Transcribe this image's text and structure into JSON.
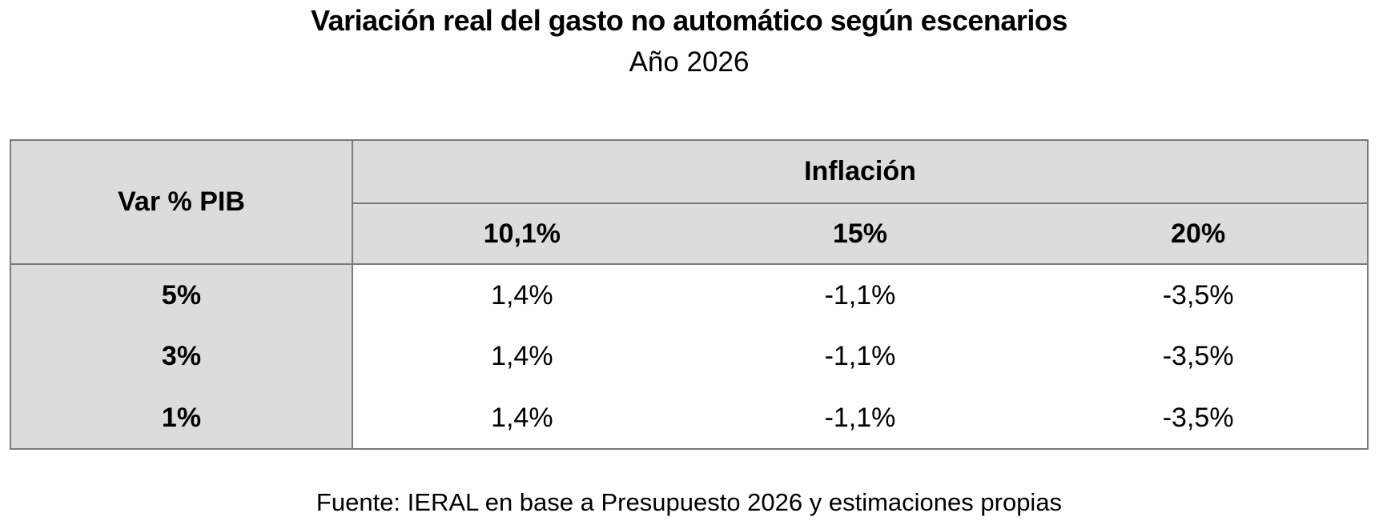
{
  "title": "Variación real del gasto no automático según escenarios",
  "subtitle": "Año 2026",
  "source": "Fuente: IERAL en base a Presupuesto 2026 y estimaciones propias",
  "table": {
    "corner_header": "Var % PIB",
    "group_header": "Inflación",
    "column_headers": [
      "10,1%",
      "15%",
      "20%"
    ],
    "rows": [
      {
        "label": "5%",
        "values": [
          "1,4%",
          "-1,1%",
          "-3,5%"
        ]
      },
      {
        "label": "3%",
        "values": [
          "1,4%",
          "-1,1%",
          "-3,5%"
        ]
      },
      {
        "label": "1%",
        "values": [
          "1,4%",
          "-1,1%",
          "-3,5%"
        ]
      }
    ]
  },
  "colors": {
    "header_bg": "#dcdcdc",
    "grid_line": "#7a7a7a",
    "body_bg": "#ffffff",
    "text": "#000000"
  },
  "chart_data": {
    "type": "table",
    "title": "Variación real del gasto no automático según escenarios",
    "subtitle": "Año 2026",
    "row_axis_label": "Var % PIB",
    "column_group_label": "Inflación",
    "columns": [
      "10,1%",
      "15%",
      "20%"
    ],
    "row_labels": [
      "5%",
      "3%",
      "1%"
    ],
    "values_pct": [
      [
        1.4,
        -1.1,
        -3.5
      ],
      [
        1.4,
        -1.1,
        -3.5
      ],
      [
        1.4,
        -1.1,
        -3.5
      ]
    ],
    "source": "Fuente: IERAL en base a Presupuesto 2026 y estimaciones propias"
  }
}
